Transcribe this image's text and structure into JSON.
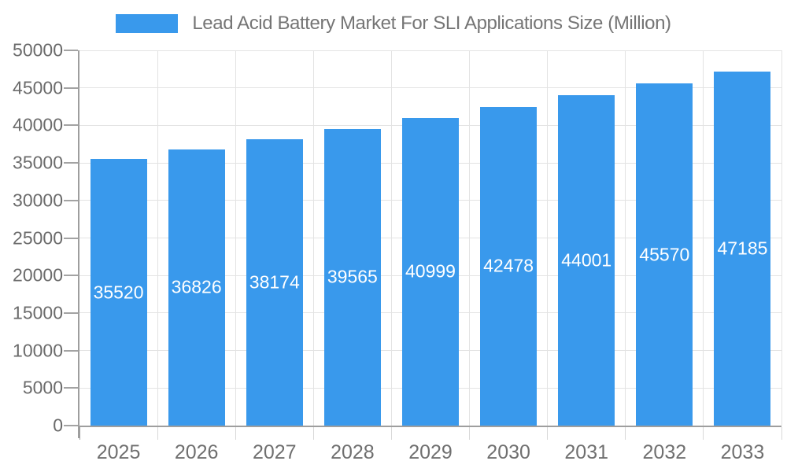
{
  "chart_data": {
    "type": "bar",
    "title": "Lead Acid Battery Market For SLI Applications Size (Million)",
    "categories": [
      "2025",
      "2026",
      "2027",
      "2028",
      "2029",
      "2030",
      "2031",
      "2032",
      "2033"
    ],
    "values": [
      35520,
      36826,
      38174,
      39565,
      40999,
      42478,
      44001,
      45570,
      47185
    ],
    "bar_labels": [
      "35520",
      "36826",
      "38174",
      "39565",
      "40999",
      "42478",
      "44001",
      "45570",
      "47185"
    ],
    "xlabel": "",
    "ylabel": "",
    "ylim": [
      0,
      50000
    ],
    "ytick_step": 5000,
    "ytick_labels": [
      "0",
      "5000",
      "10000",
      "15000",
      "20000",
      "25000",
      "30000",
      "35000",
      "40000",
      "45000",
      "50000"
    ],
    "grid": true,
    "legend_position": "top-center",
    "colors": {
      "bar": "#3999EC",
      "bar_label": "#FFFFFF",
      "gridline": "#E3E3E3",
      "axis": "#9E9E9E",
      "x_tick": "#D8D8D8",
      "y_tick": "#A3A3A3",
      "y_label": "#6B6B6B",
      "x_label": "#6F6F6F",
      "title": "#757575",
      "background": "#FFFFFF"
    }
  }
}
